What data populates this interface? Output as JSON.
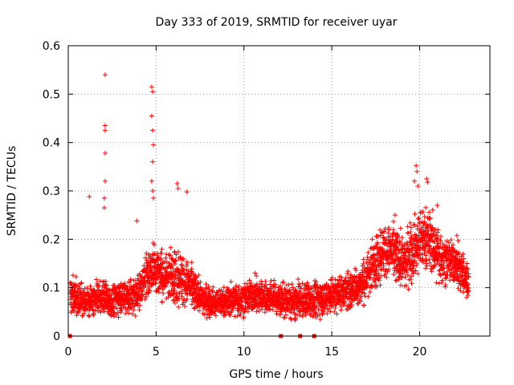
{
  "chart_data": {
    "type": "scatter",
    "title": "Day 333 of 2019, SRMTID for receiver uyar",
    "xlabel": "GPS time / hours",
    "ylabel": "SRMTID / TECUs",
    "xlim": [
      0,
      24
    ],
    "ylim": [
      0,
      0.6
    ],
    "x_ticks": [
      0,
      5,
      10,
      15,
      20
    ],
    "x_tick_labels": [
      "0",
      "5",
      "10",
      "15",
      "20"
    ],
    "y_ticks": [
      0,
      0.1,
      0.2,
      0.3,
      0.4,
      0.5,
      0.6
    ],
    "y_tick_labels": [
      "0",
      "0.1",
      "0.2",
      "0.3",
      "0.4",
      "0.5",
      "0.6"
    ],
    "grid": true,
    "marker": "plus",
    "color": "#ff0000",
    "baseline_markers_x": [
      0.1,
      12.1,
      13.2,
      14.0
    ],
    "outliers": [
      {
        "x": 2.1,
        "y": 0.54
      },
      {
        "x": 2.1,
        "y": 0.435
      },
      {
        "x": 2.1,
        "y": 0.425
      },
      {
        "x": 2.1,
        "y": 0.378
      },
      {
        "x": 2.1,
        "y": 0.32
      },
      {
        "x": 2.05,
        "y": 0.285
      },
      {
        "x": 2.05,
        "y": 0.265
      },
      {
        "x": 1.2,
        "y": 0.288
      },
      {
        "x": 4.75,
        "y": 0.515
      },
      {
        "x": 4.8,
        "y": 0.505
      },
      {
        "x": 4.75,
        "y": 0.455
      },
      {
        "x": 4.8,
        "y": 0.425
      },
      {
        "x": 4.85,
        "y": 0.395
      },
      {
        "x": 4.8,
        "y": 0.36
      },
      {
        "x": 4.75,
        "y": 0.32
      },
      {
        "x": 4.8,
        "y": 0.3
      },
      {
        "x": 4.85,
        "y": 0.285
      },
      {
        "x": 3.9,
        "y": 0.238
      },
      {
        "x": 6.2,
        "y": 0.315
      },
      {
        "x": 6.25,
        "y": 0.305
      },
      {
        "x": 6.75,
        "y": 0.298
      },
      {
        "x": 19.8,
        "y": 0.352
      },
      {
        "x": 19.85,
        "y": 0.34
      },
      {
        "x": 20.4,
        "y": 0.325
      },
      {
        "x": 20.45,
        "y": 0.318
      },
      {
        "x": 19.9,
        "y": 0.31
      },
      {
        "x": 19.7,
        "y": 0.32
      },
      {
        "x": 21.0,
        "y": 0.27
      },
      {
        "x": 18.6,
        "y": 0.25
      }
    ],
    "envelope": {
      "description": "dense measurement cloud; center and spread of SRMTID (TECU) by GPS hour",
      "x": [
        0.1,
        0.5,
        1,
        1.5,
        2,
        2.5,
        3,
        3.5,
        4,
        4.5,
        5,
        5.5,
        6,
        6.5,
        7,
        7.5,
        8,
        9,
        10,
        11,
        12,
        13,
        14,
        15,
        16,
        16.5,
        17,
        17.5,
        18,
        18.5,
        19,
        19.5,
        20,
        20.5,
        21,
        21.5,
        22,
        22.5,
        22.8
      ],
      "center": [
        0.09,
        0.08,
        0.07,
        0.075,
        0.08,
        0.07,
        0.085,
        0.08,
        0.09,
        0.13,
        0.14,
        0.12,
        0.13,
        0.12,
        0.1,
        0.08,
        0.07,
        0.07,
        0.08,
        0.085,
        0.075,
        0.07,
        0.075,
        0.085,
        0.095,
        0.1,
        0.12,
        0.16,
        0.18,
        0.17,
        0.15,
        0.17,
        0.2,
        0.2,
        0.17,
        0.16,
        0.15,
        0.13,
        0.11
      ],
      "spread": [
        0.03,
        0.03,
        0.025,
        0.025,
        0.03,
        0.025,
        0.03,
        0.03,
        0.035,
        0.04,
        0.05,
        0.04,
        0.05,
        0.05,
        0.04,
        0.03,
        0.025,
        0.025,
        0.03,
        0.03,
        0.03,
        0.03,
        0.03,
        0.03,
        0.035,
        0.035,
        0.04,
        0.05,
        0.05,
        0.05,
        0.05,
        0.05,
        0.06,
        0.05,
        0.05,
        0.04,
        0.04,
        0.04,
        0.03
      ]
    }
  }
}
